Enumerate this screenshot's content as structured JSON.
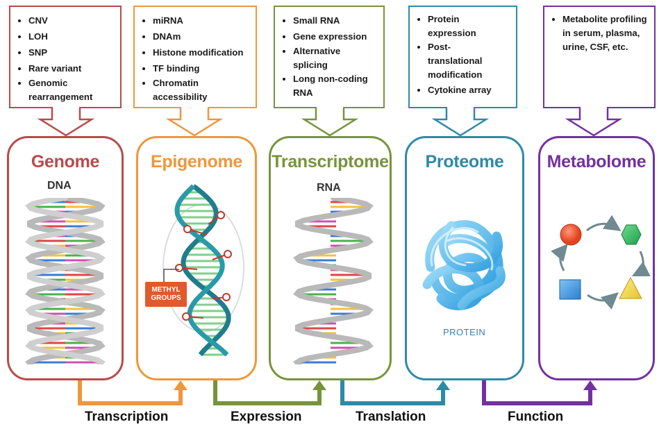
{
  "colors": {
    "genome": "#b94a4a",
    "epigenome": "#f0963a",
    "transcriptome": "#77943b",
    "proteome": "#2e8aa6",
    "metabolome": "#7331a0"
  },
  "columns": [
    {
      "id": "genome",
      "title": "Genome",
      "items": [
        "CNV",
        "LOH",
        "SNP",
        "Rare variant",
        "Genomic rearrangement"
      ]
    },
    {
      "id": "epigenome",
      "title": "Epigenome",
      "items": [
        "miRNA",
        "DNAm",
        "Histone modification",
        "TF binding",
        "Chromatin accessibility"
      ]
    },
    {
      "id": "transcriptome",
      "title": "Transcriptome",
      "items": [
        "Small RNA",
        "Gene expression",
        "Alternative splicing",
        "Long non-coding RNA"
      ]
    },
    {
      "id": "proteome",
      "title": "Proteome",
      "items": [
        "Protein expression",
        "Post-translational modification",
        "Cytokine array"
      ]
    },
    {
      "id": "metabolome",
      "title": "Metabolome",
      "items": [
        "Metabolite profiling in serum, plasma, urine, CSF, etc."
      ]
    }
  ],
  "image_labels": {
    "dna": "DNA",
    "methyl_groups": "METHYL GROUPS",
    "rna": "RNA",
    "protein": "PROTEIN"
  },
  "flows": [
    "Transcription",
    "Expression",
    "Translation",
    "Function"
  ],
  "icons": {
    "dna": "dna-helix-icon",
    "methylation": "methylated-dna-icon",
    "rna": "rna-strand-icon",
    "protein": "protein-tangle-icon",
    "metabolism": "metabolite-cycle-icon"
  }
}
